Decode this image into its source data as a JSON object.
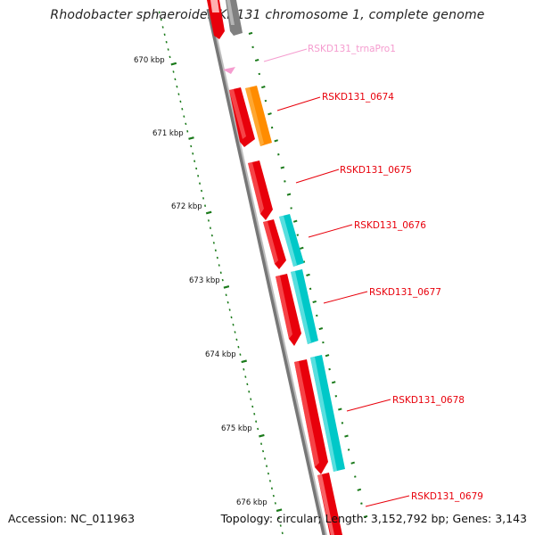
{
  "title": "Rhodobacter sphaeroides KD131 chromosome 1, complete genome",
  "accession": "Accession: NC_011963",
  "summary": "Topology: circular; Length: 3,152,792 bp; Genes: 3,143",
  "colors": {
    "cds": "#e8000b",
    "cds_light": "#ff9090",
    "trna": "#f59ccf",
    "orange": "#ff8c00",
    "cyan": "#00c8c8",
    "gray": "#808080",
    "tick": "#1a7a1a",
    "backbone": "#7a7a7a"
  },
  "kbp_labels": [
    "670 kbp",
    "671 kbp",
    "672 kbp",
    "673 kbp",
    "674 kbp",
    "675 kbp",
    "676 kbp"
  ],
  "features": [
    {
      "label": "RSKD131_trnaPro1",
      "type": "tRNA",
      "color": "#f59ccf"
    },
    {
      "label": "RSKD131_0674",
      "type": "CDS",
      "color": "#e8000b"
    },
    {
      "label": "RSKD131_0675",
      "type": "CDS",
      "color": "#e8000b"
    },
    {
      "label": "RSKD131_0676",
      "type": "CDS",
      "color": "#e8000b"
    },
    {
      "label": "RSKD131_0677",
      "type": "CDS",
      "color": "#e8000b"
    },
    {
      "label": "RSKD131_0678",
      "type": "CDS",
      "color": "#e8000b"
    },
    {
      "label": "RSKD131_0679",
      "type": "CDS",
      "color": "#e8000b"
    }
  ]
}
